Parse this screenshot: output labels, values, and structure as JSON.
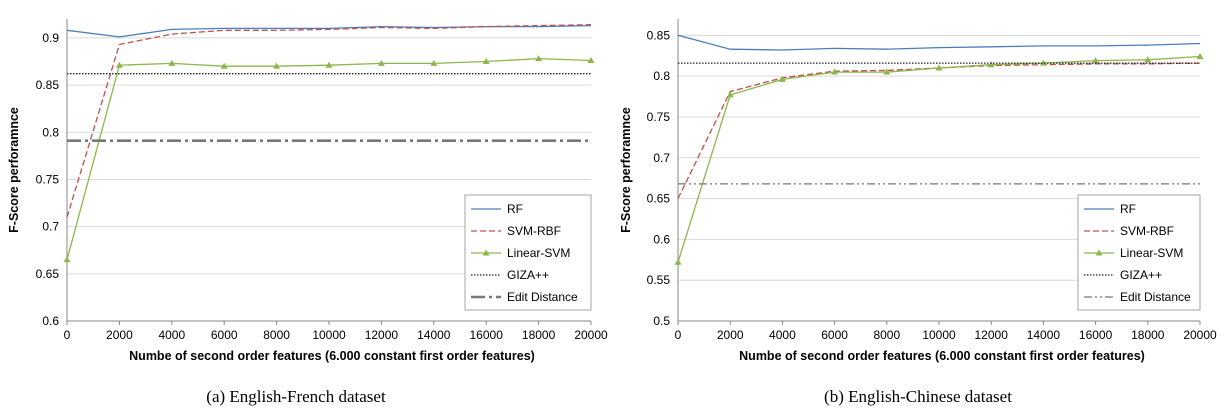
{
  "figure": {
    "captions": [
      "(a) English-French dataset",
      "(b) English-Chinese dataset"
    ]
  },
  "chart_data": [
    {
      "type": "line",
      "caption": "(a) English-French dataset",
      "xlabel": "Numbe of second order features (6.000 constant first order features)",
      "ylabel": "F-Score perforamnce",
      "x": [
        0,
        2000,
        4000,
        6000,
        8000,
        10000,
        12000,
        14000,
        16000,
        18000,
        20000
      ],
      "xlim": [
        0,
        20000
      ],
      "ylim": [
        0.6,
        0.92
      ],
      "x_ticks": [
        "0",
        "2000",
        "4000",
        "6000",
        "8000",
        "10000",
        "12000",
        "14000",
        "16000",
        "18000",
        "20000"
      ],
      "y_ticks": [
        "0.6",
        "0.65",
        "0.7",
        "0.75",
        "0.8",
        "0.85",
        "0.9"
      ],
      "y_tick_values": [
        0.6,
        0.65,
        0.7,
        0.75,
        0.8,
        0.85,
        0.9
      ],
      "grid": "horizontal",
      "legend_position": "bottom-right",
      "series": [
        {
          "name": "RF",
          "color": "#4a7ebb",
          "style": "solid",
          "marker": "none",
          "values": [
            0.908,
            0.901,
            0.909,
            0.91,
            0.91,
            0.91,
            0.912,
            0.911,
            0.912,
            0.912,
            0.913
          ]
        },
        {
          "name": "SVM-RBF",
          "color": "#c0504d",
          "style": "dashed",
          "marker": "none",
          "values": [
            0.71,
            0.893,
            0.904,
            0.908,
            0.908,
            0.909,
            0.911,
            0.91,
            0.912,
            0.913,
            0.914
          ]
        },
        {
          "name": "Linear-SVM",
          "color": "#8db64c",
          "style": "solid",
          "marker": "triangle",
          "values": [
            0.665,
            0.871,
            0.873,
            0.87,
            0.87,
            0.871,
            0.873,
            0.873,
            0.875,
            0.878,
            0.876
          ]
        },
        {
          "name": "GIZA++",
          "color": "#222222",
          "style": "dotted",
          "marker": "none",
          "values": [
            0.862,
            0.862,
            0.862,
            0.862,
            0.862,
            0.862,
            0.862,
            0.862,
            0.862,
            0.862,
            0.862
          ]
        },
        {
          "name": "Edit Distance",
          "color": "#777777",
          "style": "dashdot-thick",
          "marker": "none",
          "values": [
            0.791,
            0.791,
            0.791,
            0.791,
            0.791,
            0.791,
            0.791,
            0.791,
            0.791,
            0.791,
            0.791
          ]
        }
      ]
    },
    {
      "type": "line",
      "caption": "(b) English-Chinese dataset",
      "xlabel": "Numbe of second order features (6.000 constant first order features)",
      "ylabel": "F-Score perforamnce",
      "x": [
        0,
        2000,
        4000,
        6000,
        8000,
        10000,
        12000,
        14000,
        16000,
        18000,
        20000
      ],
      "xlim": [
        0,
        20000
      ],
      "ylim": [
        0.5,
        0.87
      ],
      "x_ticks": [
        "0",
        "2000",
        "4000",
        "6000",
        "8000",
        "10000",
        "12000",
        "14000",
        "16000",
        "18000",
        "20000"
      ],
      "y_ticks": [
        "0.5",
        "0.55",
        "0.6",
        "0.65",
        "0.7",
        "0.75",
        "0.8",
        "0.85"
      ],
      "y_tick_values": [
        0.5,
        0.55,
        0.6,
        0.65,
        0.7,
        0.75,
        0.8,
        0.85
      ],
      "grid": "horizontal",
      "legend_position": "bottom-right",
      "series": [
        {
          "name": "RF",
          "color": "#4a7ebb",
          "style": "solid",
          "marker": "none",
          "values": [
            0.85,
            0.833,
            0.832,
            0.834,
            0.833,
            0.835,
            0.836,
            0.837,
            0.837,
            0.838,
            0.84
          ]
        },
        {
          "name": "SVM-RBF",
          "color": "#c0504d",
          "style": "dashed",
          "marker": "none",
          "values": [
            0.65,
            0.781,
            0.798,
            0.806,
            0.807,
            0.81,
            0.813,
            0.814,
            0.815,
            0.815,
            0.816
          ]
        },
        {
          "name": "Linear-SVM",
          "color": "#8db64c",
          "style": "solid",
          "marker": "triangle",
          "values": [
            0.572,
            0.777,
            0.796,
            0.805,
            0.805,
            0.81,
            0.814,
            0.816,
            0.819,
            0.82,
            0.824
          ]
        },
        {
          "name": "GIZA++",
          "color": "#222222",
          "style": "dotted",
          "marker": "none",
          "values": [
            0.816,
            0.816,
            0.816,
            0.816,
            0.816,
            0.816,
            0.816,
            0.816,
            0.816,
            0.816,
            0.816
          ]
        },
        {
          "name": "Edit Distance",
          "color": "#777777",
          "style": "dashdotdot",
          "marker": "none",
          "values": [
            0.668,
            0.668,
            0.668,
            0.668,
            0.668,
            0.668,
            0.668,
            0.668,
            0.668,
            0.668,
            0.668
          ]
        }
      ]
    }
  ]
}
